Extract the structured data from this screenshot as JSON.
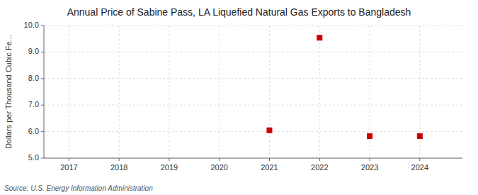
{
  "chart_data": {
    "type": "scatter",
    "title": "Annual Price of Sabine Pass, LA Liquefied Natural Gas Exports to Bangladesh",
    "y_label": "Dollars per Thousand Cubic Fe...",
    "annotations": [
      "Source: U.S. Energy Information Administration"
    ],
    "x": [
      2021,
      2022,
      2023,
      2024
    ],
    "values": [
      6.05,
      9.54,
      5.83,
      5.83
    ],
    "color": "#cc0000",
    "marker": "square",
    "xlim": [
      2016.5,
      2024.85
    ],
    "ylim": [
      5.0,
      10.0
    ],
    "xticks": [
      2017,
      2018,
      2019,
      2020,
      2021,
      2022,
      2023,
      2024
    ],
    "yticks": [
      {
        "value": 5.0,
        "label": "5.0"
      },
      {
        "value": 6.0,
        "label": "6.0"
      },
      {
        "value": 7.0,
        "label": "7.0"
      },
      {
        "value": 8.0,
        "label": "8.0"
      },
      {
        "value": 9.0,
        "label": "9.0"
      },
      {
        "value": 10.0,
        "label": "10.0"
      }
    ],
    "grid": true
  }
}
